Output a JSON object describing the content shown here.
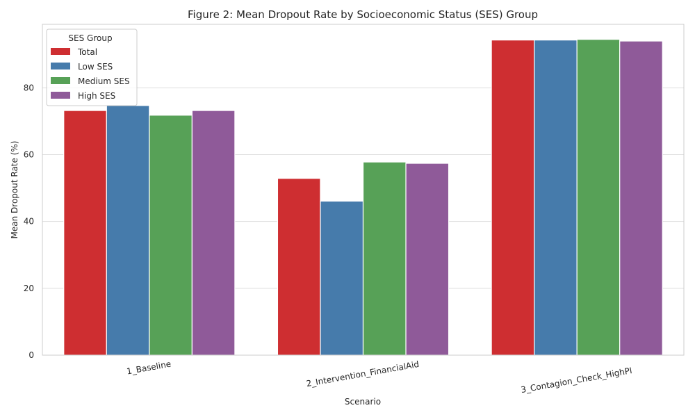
{
  "chart_data": {
    "type": "bar",
    "title": "Figure 2: Mean Dropout Rate by Socioeconomic Status (SES) Group",
    "xlabel": "Scenario",
    "ylabel": "Mean Dropout Rate (%)",
    "categories": [
      "1_Baseline",
      "2_Intervention_FinancialAid",
      "3_Contagion_Check_HighPI"
    ],
    "ylim": [
      0,
      99
    ],
    "yticks": [
      0,
      20,
      40,
      60,
      80
    ],
    "grid": true,
    "legend": {
      "title": "SES Group",
      "position": "top-left"
    },
    "series": [
      {
        "name": "Total",
        "color": "#ce2e31",
        "values": [
          73.2,
          52.9,
          94.3
        ]
      },
      {
        "name": "Low SES",
        "color": "#467bab",
        "values": [
          74.7,
          46.1,
          94.3
        ]
      },
      {
        "name": "Medium SES",
        "color": "#57a157",
        "values": [
          71.8,
          57.8,
          94.5
        ]
      },
      {
        "name": "High SES",
        "color": "#8f5a99",
        "values": [
          73.2,
          57.4,
          94.0
        ]
      }
    ]
  }
}
